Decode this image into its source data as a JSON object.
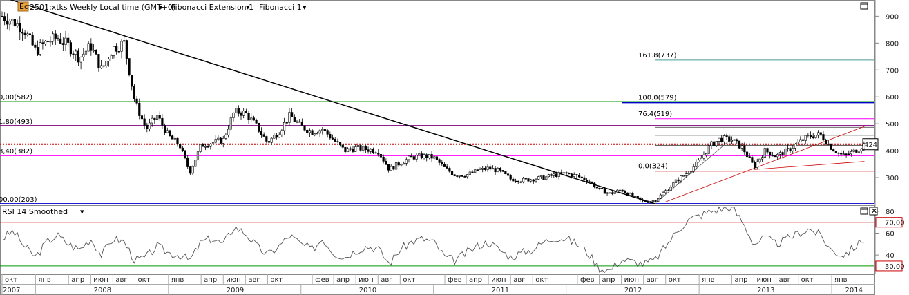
{
  "header": {
    "logo_text": "Eq",
    "symbol": "2501:xtks Weekly Local time (GMT+0)",
    "study1": "Fibonacci Extension 1",
    "study2": "Fibonacci 1"
  },
  "rsi_panel": {
    "title": "RSI 14 Smoothed"
  },
  "colors": {
    "candle": "#000000",
    "trendline": "#000000",
    "green": "#009900",
    "purple": "#800080",
    "magenta": "#ff00ff",
    "blue": "#0000cc",
    "red": "#cc0000",
    "teal": "#4a9999",
    "rsi_line": "#555555"
  },
  "chart_data": [
    {
      "type": "candlestick",
      "yticks": [
        300,
        400,
        500,
        600,
        700,
        800,
        900
      ],
      "ylim": [
        200,
        960
      ],
      "current_price": 424,
      "x_month_labels": [
        "окт",
        "янв",
        "апр",
        "июн",
        "авг",
        "окт",
        "янв",
        "апр",
        "июн",
        "авг",
        "окт",
        "фев",
        "апр",
        "июн",
        "авг",
        "окт",
        "фев",
        "апр",
        "июн",
        "авг",
        "окт",
        "фев",
        "апр",
        "июн",
        "авг",
        "окт",
        "янв",
        "апр",
        "июн",
        "авг",
        "окт",
        "янв"
      ],
      "x_year_labels": [
        "2007",
        "2008",
        "2009",
        "2010",
        "2011",
        "2012",
        "2013",
        "2014"
      ],
      "price_series": [
        {
          "d": "2007-10-01",
          "c": 900
        },
        {
          "d": "2007-11-01",
          "c": 880
        },
        {
          "d": "2007-12-01",
          "c": 850
        },
        {
          "d": "2008-01-01",
          "c": 770
        },
        {
          "d": "2008-02-01",
          "c": 805
        },
        {
          "d": "2008-03-01",
          "c": 820
        },
        {
          "d": "2008-04-01",
          "c": 790
        },
        {
          "d": "2008-05-01",
          "c": 745
        },
        {
          "d": "2008-06-01",
          "c": 790
        },
        {
          "d": "2008-07-01",
          "c": 700
        },
        {
          "d": "2008-08-01",
          "c": 780
        },
        {
          "d": "2008-09-01",
          "c": 800
        },
        {
          "d": "2008-10-01",
          "c": 580
        },
        {
          "d": "2008-11-01",
          "c": 480
        },
        {
          "d": "2008-12-01",
          "c": 530
        },
        {
          "d": "2009-01-01",
          "c": 455
        },
        {
          "d": "2009-02-01",
          "c": 420
        },
        {
          "d": "2009-03-01",
          "c": 320
        },
        {
          "d": "2009-04-01",
          "c": 420
        },
        {
          "d": "2009-05-01",
          "c": 430
        },
        {
          "d": "2009-06-01",
          "c": 440
        },
        {
          "d": "2009-07-01",
          "c": 545
        },
        {
          "d": "2009-08-01",
          "c": 540
        },
        {
          "d": "2009-09-01",
          "c": 490
        },
        {
          "d": "2009-10-01",
          "c": 430
        },
        {
          "d": "2009-11-01",
          "c": 470
        },
        {
          "d": "2009-12-01",
          "c": 530
        },
        {
          "d": "2010-01-01",
          "c": 490
        },
        {
          "d": "2010-02-01",
          "c": 470
        },
        {
          "d": "2010-03-01",
          "c": 480
        },
        {
          "d": "2010-04-01",
          "c": 440
        },
        {
          "d": "2010-05-01",
          "c": 400
        },
        {
          "d": "2010-06-01",
          "c": 410
        },
        {
          "d": "2010-07-01",
          "c": 405
        },
        {
          "d": "2010-08-01",
          "c": 400
        },
        {
          "d": "2010-09-01",
          "c": 330
        },
        {
          "d": "2010-10-01",
          "c": 355
        },
        {
          "d": "2010-11-01",
          "c": 375
        },
        {
          "d": "2010-12-01",
          "c": 380
        },
        {
          "d": "2011-01-01",
          "c": 375
        },
        {
          "d": "2011-02-01",
          "c": 335
        },
        {
          "d": "2011-03-01",
          "c": 310
        },
        {
          "d": "2011-04-01",
          "c": 310
        },
        {
          "d": "2011-05-01",
          "c": 325
        },
        {
          "d": "2011-06-01",
          "c": 335
        },
        {
          "d": "2011-07-01",
          "c": 325
        },
        {
          "d": "2011-08-01",
          "c": 295
        },
        {
          "d": "2011-09-01",
          "c": 290
        },
        {
          "d": "2011-10-01",
          "c": 295
        },
        {
          "d": "2011-11-01",
          "c": 300
        },
        {
          "d": "2011-12-01",
          "c": 310
        },
        {
          "d": "2012-01-01",
          "c": 315
        },
        {
          "d": "2012-02-01",
          "c": 305
        },
        {
          "d": "2012-03-01",
          "c": 290
        },
        {
          "d": "2012-04-01",
          "c": 255
        },
        {
          "d": "2012-05-01",
          "c": 240
        },
        {
          "d": "2012-06-01",
          "c": 255
        },
        {
          "d": "2012-07-01",
          "c": 230
        },
        {
          "d": "2012-08-01",
          "c": 210
        },
        {
          "d": "2012-09-01",
          "c": 215
        },
        {
          "d": "2012-10-01",
          "c": 250
        },
        {
          "d": "2012-11-01",
          "c": 290
        },
        {
          "d": "2012-12-01",
          "c": 320
        },
        {
          "d": "2013-01-01",
          "c": 360
        },
        {
          "d": "2013-02-01",
          "c": 420
        },
        {
          "d": "2013-03-01",
          "c": 445
        },
        {
          "d": "2013-04-01",
          "c": 440
        },
        {
          "d": "2013-05-01",
          "c": 410
        },
        {
          "d": "2013-06-01",
          "c": 340
        },
        {
          "d": "2013-07-01",
          "c": 400
        },
        {
          "d": "2013-08-01",
          "c": 380
        },
        {
          "d": "2013-09-01",
          "c": 400
        },
        {
          "d": "2013-10-01",
          "c": 430
        },
        {
          "d": "2013-11-01",
          "c": 455
        },
        {
          "d": "2013-12-01",
          "c": 460
        },
        {
          "d": "2014-01-01",
          "c": 410
        },
        {
          "d": "2014-02-01",
          "c": 380
        },
        {
          "d": "2014-03-01",
          "c": 395
        },
        {
          "d": "2014-04-01",
          "c": 424
        }
      ],
      "fibonacci_retracement_labels": [
        {
          "label": "0,00(582)",
          "value": 582,
          "color": "green"
        },
        {
          "label": "1,80(493)",
          "value": 493,
          "color": "purple"
        },
        {
          "label": "8,40(382)",
          "value": 382,
          "color": "magenta"
        },
        {
          "label": "00,00(203)",
          "value": 203,
          "color": "blue"
        }
      ],
      "fibonacci_extension_labels": [
        {
          "label": "161.8(737)",
          "value": 737,
          "color": "teal"
        },
        {
          "label": "100.0(579)",
          "value": 579,
          "color": "blue"
        },
        {
          "label": "76.4(519)",
          "value": 519,
          "color": "magenta"
        },
        {
          "label": "0.0(324)",
          "value": 324,
          "color": "red"
        }
      ],
      "extension_extra_levels": [
        487,
        457,
        420,
        366
      ],
      "trendline": {
        "from": {
          "d": "2007-10-15",
          "v": 965
        },
        "to": {
          "d": "2012-09-01",
          "v": 203
        }
      },
      "channel_lines": [
        {
          "from": {
            "d": "2012-09-01",
            "v": 203
          },
          "to": {
            "d": "2013-04-01",
            "v": 445
          }
        },
        {
          "from": {
            "d": "2012-10-01",
            "v": 210
          },
          "to": {
            "d": "2014-04-01",
            "v": 490
          }
        },
        {
          "from": {
            "d": "2013-06-01",
            "v": 330
          },
          "to": {
            "d": "2014-04-01",
            "v": 360
          }
        }
      ]
    },
    {
      "type": "line",
      "yticks": [
        40,
        60,
        80
      ],
      "ylim": [
        23,
        85
      ],
      "levels": [
        {
          "label": "70,00",
          "value": 70
        },
        {
          "label": "30,00",
          "value": 30
        }
      ],
      "rsi_series": [
        {
          "d": "2007-10-01",
          "v": 55
        },
        {
          "d": "2007-11-01",
          "v": 62
        },
        {
          "d": "2007-12-01",
          "v": 48
        },
        {
          "d": "2008-01-01",
          "v": 38
        },
        {
          "d": "2008-02-01",
          "v": 52
        },
        {
          "d": "2008-03-01",
          "v": 58
        },
        {
          "d": "2008-04-01",
          "v": 50
        },
        {
          "d": "2008-05-01",
          "v": 45
        },
        {
          "d": "2008-06-01",
          "v": 55
        },
        {
          "d": "2008-07-01",
          "v": 40
        },
        {
          "d": "2008-08-01",
          "v": 55
        },
        {
          "d": "2008-09-01",
          "v": 52
        },
        {
          "d": "2008-10-01",
          "v": 35
        },
        {
          "d": "2008-11-01",
          "v": 38
        },
        {
          "d": "2008-12-01",
          "v": 48
        },
        {
          "d": "2009-01-01",
          "v": 42
        },
        {
          "d": "2009-02-01",
          "v": 40
        },
        {
          "d": "2009-03-01",
          "v": 35
        },
        {
          "d": "2009-04-01",
          "v": 52
        },
        {
          "d": "2009-05-01",
          "v": 55
        },
        {
          "d": "2009-06-01",
          "v": 50
        },
        {
          "d": "2009-07-01",
          "v": 66
        },
        {
          "d": "2009-08-01",
          "v": 60
        },
        {
          "d": "2009-09-01",
          "v": 48
        },
        {
          "d": "2009-10-01",
          "v": 40
        },
        {
          "d": "2009-11-01",
          "v": 48
        },
        {
          "d": "2009-12-01",
          "v": 58
        },
        {
          "d": "2010-01-01",
          "v": 50
        },
        {
          "d": "2010-02-01",
          "v": 45
        },
        {
          "d": "2010-03-01",
          "v": 55
        },
        {
          "d": "2010-04-01",
          "v": 42
        },
        {
          "d": "2010-05-01",
          "v": 38
        },
        {
          "d": "2010-06-01",
          "v": 44
        },
        {
          "d": "2010-07-01",
          "v": 48
        },
        {
          "d": "2010-08-01",
          "v": 46
        },
        {
          "d": "2010-09-01",
          "v": 32
        },
        {
          "d": "2010-10-01",
          "v": 45
        },
        {
          "d": "2010-11-01",
          "v": 52
        },
        {
          "d": "2010-12-01",
          "v": 55
        },
        {
          "d": "2011-01-01",
          "v": 52
        },
        {
          "d": "2011-02-01",
          "v": 38
        },
        {
          "d": "2011-03-01",
          "v": 35
        },
        {
          "d": "2011-04-01",
          "v": 42
        },
        {
          "d": "2011-05-01",
          "v": 48
        },
        {
          "d": "2011-06-01",
          "v": 52
        },
        {
          "d": "2011-07-01",
          "v": 45
        },
        {
          "d": "2011-08-01",
          "v": 38
        },
        {
          "d": "2011-09-01",
          "v": 42
        },
        {
          "d": "2011-10-01",
          "v": 45
        },
        {
          "d": "2011-11-01",
          "v": 52
        },
        {
          "d": "2011-12-01",
          "v": 56
        },
        {
          "d": "2012-01-01",
          "v": 55
        },
        {
          "d": "2012-02-01",
          "v": 50
        },
        {
          "d": "2012-03-01",
          "v": 42
        },
        {
          "d": "2012-04-01",
          "v": 28
        },
        {
          "d": "2012-05-01",
          "v": 26
        },
        {
          "d": "2012-06-01",
          "v": 36
        },
        {
          "d": "2012-07-01",
          "v": 34
        },
        {
          "d": "2012-08-01",
          "v": 32
        },
        {
          "d": "2012-09-01",
          "v": 35
        },
        {
          "d": "2012-10-01",
          "v": 48
        },
        {
          "d": "2012-11-01",
          "v": 62
        },
        {
          "d": "2012-12-01",
          "v": 72
        },
        {
          "d": "2013-01-01",
          "v": 76
        },
        {
          "d": "2013-02-01",
          "v": 80
        },
        {
          "d": "2013-03-01",
          "v": 82
        },
        {
          "d": "2013-04-01",
          "v": 84
        },
        {
          "d": "2013-05-01",
          "v": 70
        },
        {
          "d": "2013-06-01",
          "v": 50
        },
        {
          "d": "2013-07-01",
          "v": 56
        },
        {
          "d": "2013-08-01",
          "v": 50
        },
        {
          "d": "2013-09-01",
          "v": 55
        },
        {
          "d": "2013-10-01",
          "v": 60
        },
        {
          "d": "2013-11-01",
          "v": 64
        },
        {
          "d": "2013-12-01",
          "v": 58
        },
        {
          "d": "2014-01-01",
          "v": 44
        },
        {
          "d": "2014-02-01",
          "v": 40
        },
        {
          "d": "2014-03-01",
          "v": 46
        },
        {
          "d": "2014-04-01",
          "v": 55
        }
      ]
    }
  ]
}
